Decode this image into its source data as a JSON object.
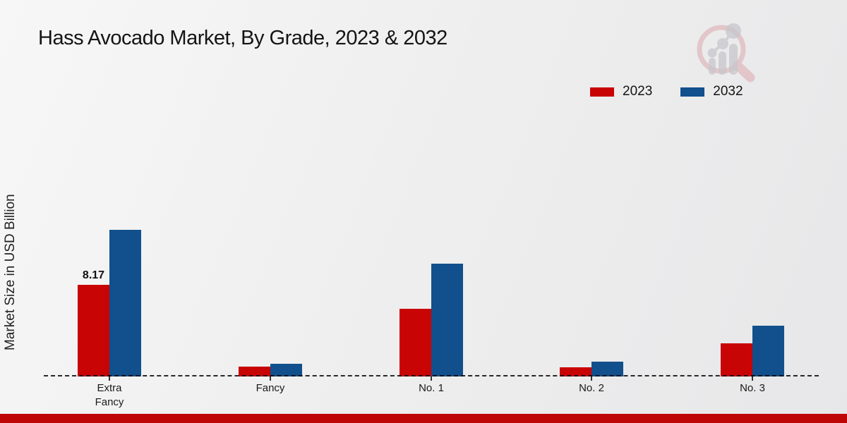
{
  "title": "Hass Avocado Market, By Grade, 2023 & 2032",
  "y_axis_label": "Market Size in USD Billion",
  "logo": "market-research-future-watermark",
  "footer_bar_color": "#BE0606",
  "chart_data": {
    "type": "bar",
    "title": "Hass Avocado Market, By Grade, 2023 & 2032",
    "ylabel": "Market Size in USD Billion",
    "xlabel": "",
    "categories": [
      "Extra Fancy",
      "Fancy",
      "No. 1",
      "No. 2",
      "No. 3"
    ],
    "categories_display": [
      "Extra\nFancy",
      "Fancy",
      "No. 1",
      "No. 2",
      "No. 3"
    ],
    "series": [
      {
        "name": "2023",
        "color": "#C80404",
        "values": [
          8.17,
          0.88,
          6.05,
          0.82,
          2.95
        ]
      },
      {
        "name": "2032",
        "color": "#11508C",
        "values": [
          13.1,
          1.13,
          10.08,
          1.32,
          4.5
        ]
      }
    ],
    "annotations": [
      {
        "series": "2023",
        "category": "Extra Fancy",
        "text": "8.17"
      }
    ],
    "ylim": [
      0,
      14
    ],
    "grid": false,
    "baseline_style": "dashed",
    "legend_position": "top-right"
  }
}
